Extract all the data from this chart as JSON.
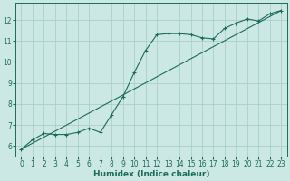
{
  "title": "",
  "xlabel": "Humidex (Indice chaleur)",
  "bg_color": "#cce8e4",
  "grid_color": "#aacfcb",
  "line_color": "#1a6b5a",
  "xlim": [
    -0.5,
    23.5
  ],
  "ylim": [
    5.5,
    12.8
  ],
  "xticks": [
    0,
    1,
    2,
    3,
    4,
    5,
    6,
    7,
    8,
    9,
    10,
    11,
    12,
    13,
    14,
    15,
    16,
    17,
    18,
    19,
    20,
    21,
    22,
    23
  ],
  "yticks": [
    6,
    7,
    8,
    9,
    10,
    11,
    12
  ],
  "line1_x": [
    0,
    1,
    2,
    3,
    4,
    5,
    6,
    7,
    8,
    9,
    10,
    11,
    12,
    13,
    14,
    15,
    16,
    17,
    18,
    19,
    20,
    21,
    22,
    23
  ],
  "line1_y": [
    5.85,
    6.3,
    6.6,
    6.55,
    6.55,
    6.65,
    6.85,
    6.65,
    7.5,
    8.35,
    9.5,
    10.55,
    11.3,
    11.35,
    11.35,
    11.3,
    11.15,
    11.1,
    11.6,
    11.85,
    12.05,
    11.95,
    12.3,
    12.45
  ],
  "line2_x": [
    0,
    23
  ],
  "line2_y": [
    5.85,
    12.45
  ],
  "tick_fontsize": 5.5,
  "xlabel_fontsize": 6.5,
  "xlabel_fontweight": "bold"
}
